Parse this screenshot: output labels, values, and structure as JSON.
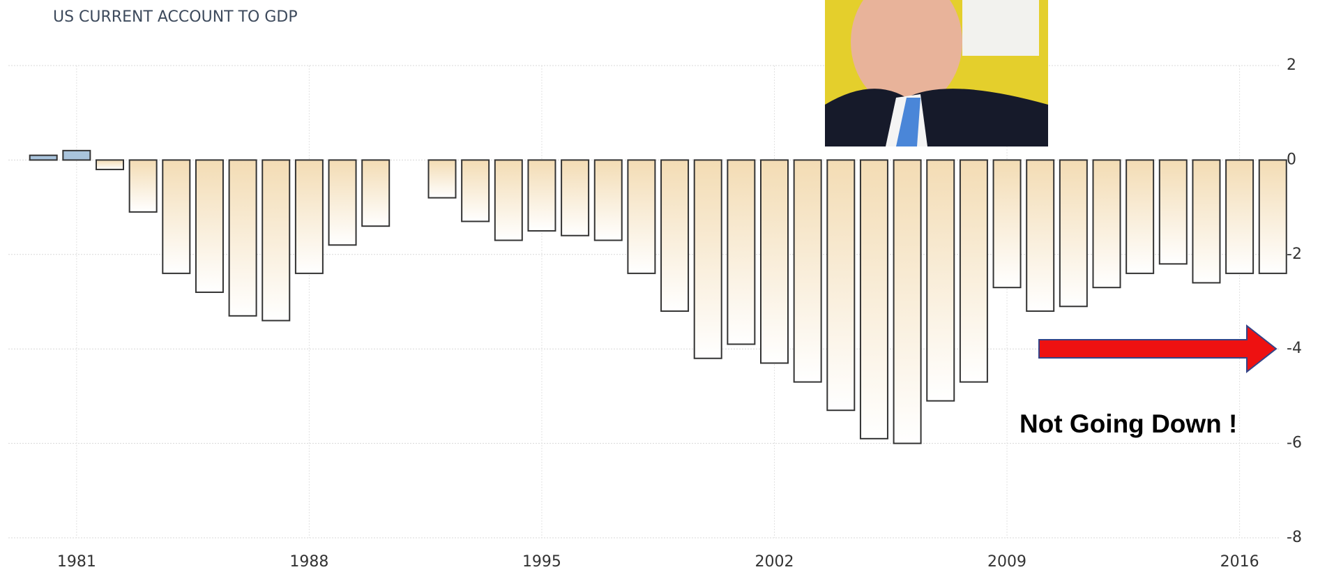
{
  "chart_data": {
    "type": "bar",
    "title": "US CURRENT ACCOUNT TO GDP",
    "categories": [
      null,
      "1981",
      null,
      null,
      null,
      null,
      null,
      null,
      "1988",
      null,
      null,
      null,
      null,
      null,
      null,
      "1995",
      null,
      null,
      null,
      null,
      null,
      null,
      "2002",
      null,
      null,
      null,
      null,
      null,
      null,
      "2009",
      null,
      null,
      null,
      null,
      null,
      null,
      "2016",
      null
    ],
    "values": [
      0.1,
      0.2,
      -0.2,
      -1.1,
      -2.4,
      -2.8,
      -3.3,
      -3.4,
      -2.4,
      -1.8,
      -1.4,
      null,
      -0.8,
      -1.3,
      -1.7,
      -1.5,
      -1.6,
      -1.7,
      -2.4,
      -3.2,
      -4.2,
      -3.9,
      -4.3,
      -4.7,
      -5.3,
      -5.9,
      -6.0,
      -5.1,
      -4.7,
      -2.7,
      -3.2,
      -3.1,
      -2.7,
      -2.4,
      -2.2,
      -2.6,
      -2.4,
      -2.4
    ],
    "positive_color": "#a9c4dc",
    "negative_color": "#f3dcb4",
    "ylim": [
      -8,
      2
    ],
    "yticks": [
      2,
      0,
      -2,
      -4,
      -6,
      -8
    ],
    "grid": true,
    "annotation": "Not Going Down !"
  }
}
